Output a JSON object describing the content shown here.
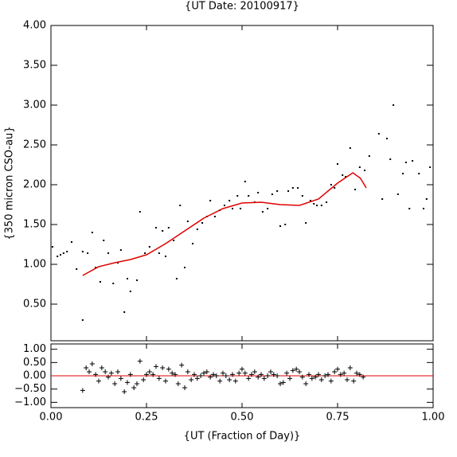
{
  "chart_data": [
    {
      "type": "scatter",
      "title": "{UT Date: 20100917}",
      "y_label": "{350 micron CSO-au}",
      "xlim": [
        0,
        1
      ],
      "ylim": [
        0.04,
        4.0
      ],
      "yticks": [
        {
          "value": 0.5,
          "label": "0.50"
        },
        {
          "value": 1,
          "label": "1.00"
        },
        {
          "value": 1.5,
          "label": "1.50"
        },
        {
          "value": 2,
          "label": "2.00"
        },
        {
          "value": 2.5,
          "label": "2.50"
        },
        {
          "value": 3,
          "label": "3.00"
        },
        {
          "value": 3.5,
          "label": "3.50"
        },
        {
          "value": 4,
          "label": "4.00"
        }
      ],
      "series": [
        {
          "type": "scatter",
          "marker": "dot",
          "color": "#000000",
          "x": [
            0.004,
            0.017,
            0.025,
            0.033,
            0.042,
            0.054,
            0.067,
            0.083,
            0.083,
            0.096,
            0.108,
            0.117,
            0.129,
            0.138,
            0.15,
            0.163,
            0.175,
            0.183,
            0.192,
            0.2,
            0.208,
            0.225,
            0.233,
            0.246,
            0.258,
            0.275,
            0.283,
            0.292,
            0.3,
            0.308,
            0.321,
            0.329,
            0.338,
            0.35,
            0.358,
            0.371,
            0.383,
            0.396,
            0.408,
            0.417,
            0.429,
            0.442,
            0.454,
            0.467,
            0.475,
            0.488,
            0.496,
            0.508,
            0.517,
            0.533,
            0.542,
            0.554,
            0.567,
            0.579,
            0.592,
            0.6,
            0.613,
            0.621,
            0.633,
            0.646,
            0.658,
            0.667,
            0.679,
            0.688,
            0.696,
            0.708,
            0.721,
            0.733,
            0.742,
            0.75,
            0.763,
            0.771,
            0.783,
            0.796,
            0.808,
            0.821,
            0.833,
            0.858,
            0.867,
            0.879,
            0.888,
            0.896,
            0.908,
            0.921,
            0.929,
            0.938,
            0.946,
            0.963,
            0.975,
            0.983,
            0.992
          ],
          "values": [
            1.22,
            1.1,
            1.12,
            1.14,
            1.16,
            1.28,
            0.94,
            1.16,
            0.3,
            1.14,
            1.4,
            0.96,
            0.78,
            1.3,
            1.14,
            0.76,
            1.02,
            1.18,
            0.4,
            0.82,
            0.66,
            0.8,
            1.66,
            1.14,
            1.22,
            1.46,
            1.14,
            1.42,
            1.1,
            1.46,
            1.3,
            0.82,
            1.74,
            0.96,
            1.54,
            1.26,
            1.44,
            1.52,
            1.6,
            1.8,
            1.6,
            1.68,
            1.74,
            1.8,
            1.7,
            1.86,
            1.7,
            2.04,
            1.86,
            1.78,
            1.9,
            1.66,
            1.7,
            1.88,
            1.92,
            1.48,
            1.5,
            1.92,
            1.96,
            1.96,
            1.86,
            1.52,
            1.8,
            1.76,
            1.74,
            1.74,
            1.78,
            2.0,
            1.96,
            2.26,
            2.12,
            2.1,
            2.46,
            1.94,
            2.22,
            2.18,
            2.36,
            2.64,
            1.82,
            2.58,
            2.32,
            3.0,
            1.88,
            2.14,
            2.28,
            1.7,
            2.3,
            2.14,
            1.7,
            1.82,
            2.22
          ]
        },
        {
          "type": "line",
          "color": "#e00000",
          "x": [
            0.083,
            0.125,
            0.167,
            0.208,
            0.25,
            0.3,
            0.35,
            0.4,
            0.45,
            0.5,
            0.55,
            0.6,
            0.65,
            0.7,
            0.75,
            0.79,
            0.81,
            0.825
          ],
          "values": [
            0.86,
            0.97,
            1.02,
            1.06,
            1.12,
            1.26,
            1.42,
            1.58,
            1.7,
            1.77,
            1.78,
            1.75,
            1.74,
            1.82,
            2.02,
            2.15,
            2.08,
            1.96
          ]
        }
      ]
    },
    {
      "type": "scatter",
      "x_label": "{UT (Fraction of Day)}",
      "xlim": [
        0,
        1
      ],
      "ylim": [
        -1.2,
        1.2
      ],
      "xticks": [
        {
          "value": 0,
          "label": "0.00"
        },
        {
          "value": 0.25,
          "label": "0.25"
        },
        {
          "value": 0.5,
          "label": "0.50"
        },
        {
          "value": 0.75,
          "label": "0.75"
        },
        {
          "value": 1,
          "label": "1.00"
        }
      ],
      "yticks": [
        {
          "value": -1,
          "label": "−1.00"
        },
        {
          "value": -0.5,
          "label": "−0.50"
        },
        {
          "value": 0,
          "label": "0.00"
        },
        {
          "value": 0.5,
          "label": "0.50"
        },
        {
          "value": 1,
          "label": "1.00"
        }
      ],
      "hline": {
        "value": 0,
        "color": "#e00000"
      },
      "series": [
        {
          "type": "scatter",
          "marker": "plus",
          "color": "#000000",
          "x": [
            0.083,
            0.092,
            0.1,
            0.108,
            0.117,
            0.125,
            0.133,
            0.142,
            0.15,
            0.158,
            0.167,
            0.175,
            0.183,
            0.192,
            0.2,
            0.208,
            0.217,
            0.225,
            0.233,
            0.242,
            0.25,
            0.258,
            0.267,
            0.275,
            0.283,
            0.292,
            0.3,
            0.308,
            0.317,
            0.325,
            0.333,
            0.342,
            0.35,
            0.358,
            0.367,
            0.375,
            0.383,
            0.392,
            0.4,
            0.408,
            0.417,
            0.425,
            0.433,
            0.442,
            0.45,
            0.458,
            0.467,
            0.475,
            0.483,
            0.492,
            0.5,
            0.508,
            0.517,
            0.525,
            0.533,
            0.542,
            0.55,
            0.558,
            0.567,
            0.575,
            0.583,
            0.592,
            0.6,
            0.608,
            0.617,
            0.625,
            0.633,
            0.642,
            0.65,
            0.658,
            0.667,
            0.675,
            0.683,
            0.692,
            0.7,
            0.708,
            0.717,
            0.725,
            0.733,
            0.742,
            0.75,
            0.758,
            0.767,
            0.775,
            0.783,
            0.792,
            0.8,
            0.808,
            0.817
          ],
          "values": [
            -0.55,
            0.3,
            0.15,
            0.45,
            0.05,
            -0.2,
            0.3,
            0.15,
            -0.05,
            0.1,
            -0.3,
            0.15,
            -0.1,
            -0.6,
            -0.25,
            0.05,
            -0.45,
            -0.3,
            0.55,
            -0.15,
            0.05,
            0.15,
            0.05,
            0.35,
            -0.1,
            0.3,
            -0.2,
            0.25,
            0.1,
            0.05,
            -0.3,
            0.4,
            -0.45,
            0.15,
            -0.15,
            0.05,
            -0.1,
            0.0,
            0.1,
            0.15,
            -0.05,
            0.05,
            0.0,
            -0.2,
            0.1,
            0.0,
            -0.15,
            0.05,
            -0.2,
            0.1,
            0.25,
            0.1,
            -0.1,
            0.05,
            0.15,
            -0.05,
            0.05,
            -0.1,
            0.0,
            0.15,
            0.05,
            0.0,
            -0.3,
            -0.25,
            0.1,
            -0.1,
            0.2,
            0.25,
            0.15,
            -0.05,
            -0.3,
            0.05,
            -0.1,
            -0.05,
            0.05,
            -0.15,
            0.0,
            0.05,
            -0.2,
            0.15,
            0.25,
            0.05,
            0.1,
            -0.15,
            0.3,
            -0.2,
            0.1,
            0.05,
            -0.05
          ]
        }
      ]
    }
  ]
}
